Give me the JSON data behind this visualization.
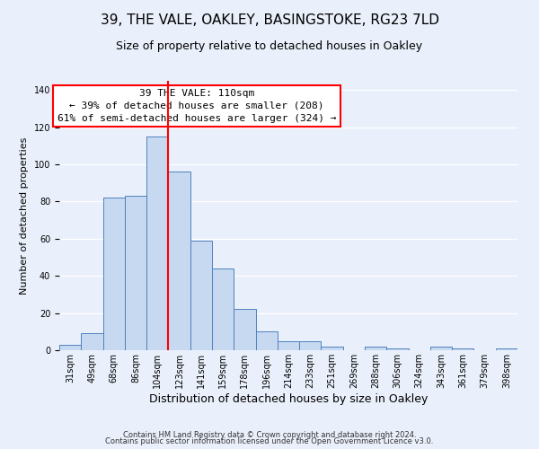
{
  "title": "39, THE VALE, OAKLEY, BASINGSTOKE, RG23 7LD",
  "subtitle": "Size of property relative to detached houses in Oakley",
  "xlabel": "Distribution of detached houses by size in Oakley",
  "ylabel": "Number of detached properties",
  "bin_labels": [
    "31sqm",
    "49sqm",
    "68sqm",
    "86sqm",
    "104sqm",
    "123sqm",
    "141sqm",
    "159sqm",
    "178sqm",
    "196sqm",
    "214sqm",
    "233sqm",
    "251sqm",
    "269sqm",
    "288sqm",
    "306sqm",
    "324sqm",
    "343sqm",
    "361sqm",
    "379sqm",
    "398sqm"
  ],
  "bar_values": [
    3,
    9,
    82,
    83,
    115,
    96,
    59,
    44,
    22,
    10,
    5,
    5,
    2,
    0,
    2,
    1,
    0,
    2,
    1,
    0,
    1
  ],
  "bar_color": "#c6d9f0",
  "bar_edge_color": "#4f81bd",
  "red_line_x": 4.5,
  "annotation_line1": "39 THE VALE: 110sqm",
  "annotation_line2": "← 39% of detached houses are smaller (208)",
  "annotation_line3": "61% of semi-detached houses are larger (324) →",
  "ylim": [
    0,
    145
  ],
  "yticks": [
    0,
    20,
    40,
    60,
    80,
    100,
    120,
    140
  ],
  "footer1": "Contains HM Land Registry data © Crown copyright and database right 2024.",
  "footer2": "Contains public sector information licensed under the Open Government Licence v3.0.",
  "background_color": "#eaf0fb",
  "plot_bg_color": "#eaf0fb",
  "title_fontsize": 11,
  "subtitle_fontsize": 9,
  "xlabel_fontsize": 9,
  "ylabel_fontsize": 8,
  "tick_fontsize": 7,
  "footer_fontsize": 6,
  "annot_fontsize": 8
}
